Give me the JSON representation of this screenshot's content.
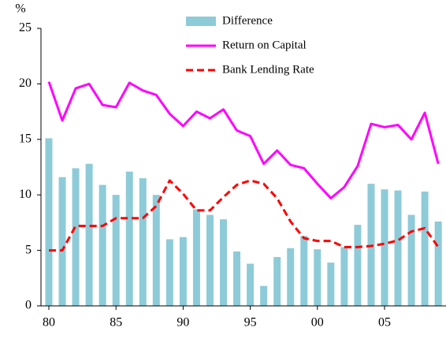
{
  "chart_data": {
    "type": "bar",
    "y_label": "%",
    "categories": [
      "80",
      null,
      null,
      null,
      null,
      "85",
      null,
      null,
      null,
      null,
      "90",
      null,
      null,
      null,
      null,
      "95",
      null,
      null,
      null,
      null,
      "00",
      null,
      null,
      null,
      null,
      "05",
      null,
      null,
      null,
      null
    ],
    "series": [
      {
        "name": "Difference",
        "type": "bar",
        "color": "#8ecbd8",
        "values": [
          15.1,
          11.6,
          12.4,
          12.8,
          10.9,
          10.0,
          12.1,
          11.5,
          10.0,
          6.0,
          6.2,
          8.7,
          8.2,
          7.8,
          4.9,
          3.8,
          1.8,
          4.4,
          5.2,
          6.3,
          5.1,
          3.9,
          5.3,
          7.3,
          11.0,
          10.5,
          10.4,
          8.2,
          10.3,
          7.6
        ]
      },
      {
        "name": "Return on Capital",
        "type": "line",
        "dashed": false,
        "color": "#ff00ff",
        "values": [
          20.2,
          16.7,
          19.6,
          20.0,
          18.1,
          17.9,
          20.1,
          19.4,
          19.0,
          17.3,
          16.2,
          17.5,
          16.9,
          17.7,
          15.8,
          15.3,
          12.8,
          14.0,
          12.7,
          12.4,
          11.0,
          9.7,
          10.7,
          12.6,
          16.4,
          16.1,
          16.3,
          15.0,
          17.4,
          12.8
        ]
      },
      {
        "name": "Bank Lending Rate",
        "type": "line",
        "dashed": true,
        "color": "#ff0000",
        "values": [
          5.0,
          5.0,
          7.2,
          7.2,
          7.2,
          7.9,
          7.9,
          7.9,
          9.0,
          11.3,
          10.1,
          8.6,
          8.6,
          9.8,
          10.9,
          11.3,
          11.0,
          9.7,
          7.6,
          6.1,
          5.85,
          5.85,
          5.3,
          5.3,
          5.4,
          5.6,
          5.9,
          6.7,
          7.0,
          5.3
        ]
      }
    ],
    "ylim": [
      0,
      25
    ],
    "yticks": [
      0,
      5,
      10,
      15,
      20,
      25
    ],
    "grid": false
  }
}
